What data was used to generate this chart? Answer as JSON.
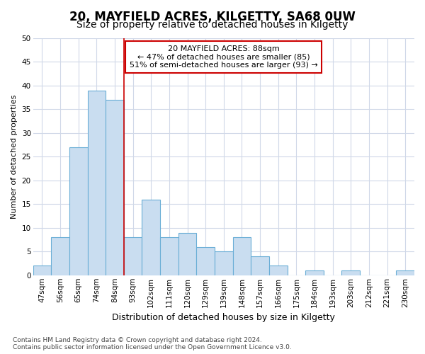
{
  "title1": "20, MAYFIELD ACRES, KILGETTY, SA68 0UW",
  "title2": "Size of property relative to detached houses in Kilgetty",
  "xlabel": "Distribution of detached houses by size in Kilgetty",
  "ylabel": "Number of detached properties",
  "categories": [
    "47sqm",
    "56sqm",
    "65sqm",
    "74sqm",
    "84sqm",
    "93sqm",
    "102sqm",
    "111sqm",
    "120sqm",
    "129sqm",
    "139sqm",
    "148sqm",
    "157sqm",
    "166sqm",
    "175sqm",
    "184sqm",
    "193sqm",
    "203sqm",
    "212sqm",
    "221sqm",
    "230sqm"
  ],
  "values": [
    2,
    8,
    27,
    39,
    37,
    8,
    16,
    8,
    9,
    6,
    5,
    8,
    4,
    2,
    0,
    1,
    0,
    1,
    0,
    0,
    1
  ],
  "bar_color": "#c9ddf0",
  "bar_edge_color": "#6aaed6",
  "vline_x_index": 4,
  "vline_color": "#cc0000",
  "annotation_line1": "20 MAYFIELD ACRES: 88sqm",
  "annotation_line2": "← 47% of detached houses are smaller (85)",
  "annotation_line3": "51% of semi-detached houses are larger (93) →",
  "annotation_box_color": "#ffffff",
  "annotation_box_edge": "#cc0000",
  "ylim": [
    0,
    50
  ],
  "yticks": [
    0,
    5,
    10,
    15,
    20,
    25,
    30,
    35,
    40,
    45,
    50
  ],
  "background_color": "#ffffff",
  "axes_background": "#ffffff",
  "grid_color": "#d0d8e8",
  "footnote": "Contains HM Land Registry data © Crown copyright and database right 2024.\nContains public sector information licensed under the Open Government Licence v3.0.",
  "title1_fontsize": 12,
  "title2_fontsize": 10,
  "xlabel_fontsize": 9,
  "ylabel_fontsize": 8,
  "tick_fontsize": 7.5,
  "annotation_fontsize": 8,
  "footnote_fontsize": 6.5
}
